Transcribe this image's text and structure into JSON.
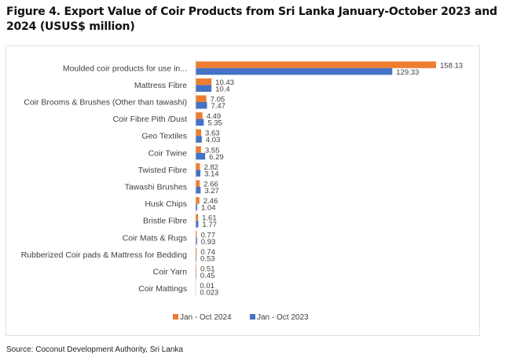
{
  "title": "Figure 4. Export Value of Coir Products from Sri Lanka January-October 2023 and 2024 (USUS$ million)",
  "source": "Source: Coconut Development Authority, Sri Lanka",
  "chart_data": {
    "type": "bar",
    "orientation": "horizontal",
    "title": "Figure 4. Export Value of Coir Products from Sri Lanka January-October 2023 and 2024 (USUS$ million)",
    "xlabel": "",
    "ylabel": "",
    "xlim": [
      0,
      165
    ],
    "grid": false,
    "legend": "bottom",
    "categories": [
      "Moulded coir products for use in...",
      "Mattress Fibre",
      "Coir Brooms & Brushes (Other than tawashi)",
      "Coir Fibre Pith /Dust",
      "Geo Textiles",
      "Coir Twine",
      "Twisted Fibre",
      "Tawashi Brushes",
      "Husk Chips",
      "Bristle Fibre",
      "Coir Mats & Rugs",
      "Rubberized Coir pads & Mattress for Bedding",
      "Coir Yarn",
      "Coir Mattings"
    ],
    "series": [
      {
        "name": "Jan - Oct 2024",
        "color": "#ED7D31",
        "values": [
          158.13,
          10.43,
          7.05,
          4.49,
          3.63,
          3.55,
          2.82,
          2.66,
          2.46,
          1.61,
          0.77,
          0.74,
          0.51,
          0.01
        ],
        "labels": [
          "158.13",
          "10.43",
          "7.05",
          "4.49",
          "3.63",
          "3.55",
          "2.82",
          "2.66",
          "2.46",
          "1.61",
          "0.77",
          "0.74",
          "0.51",
          "0.01"
        ]
      },
      {
        "name": "Jan - Oct 2023",
        "color": "#4472C4",
        "values": [
          129.33,
          10.4,
          7.47,
          5.35,
          4.03,
          6.29,
          3.14,
          3.27,
          1.04,
          1.77,
          0.93,
          0.53,
          0.45,
          0.023
        ],
        "labels": [
          "129.33",
          "10.4",
          "7.47",
          "5.35",
          "4.03",
          "6.29",
          "3.14",
          "3.27",
          "1.04",
          "1.77",
          "0.93",
          "0.53",
          "0.45",
          "0.023"
        ]
      }
    ]
  }
}
